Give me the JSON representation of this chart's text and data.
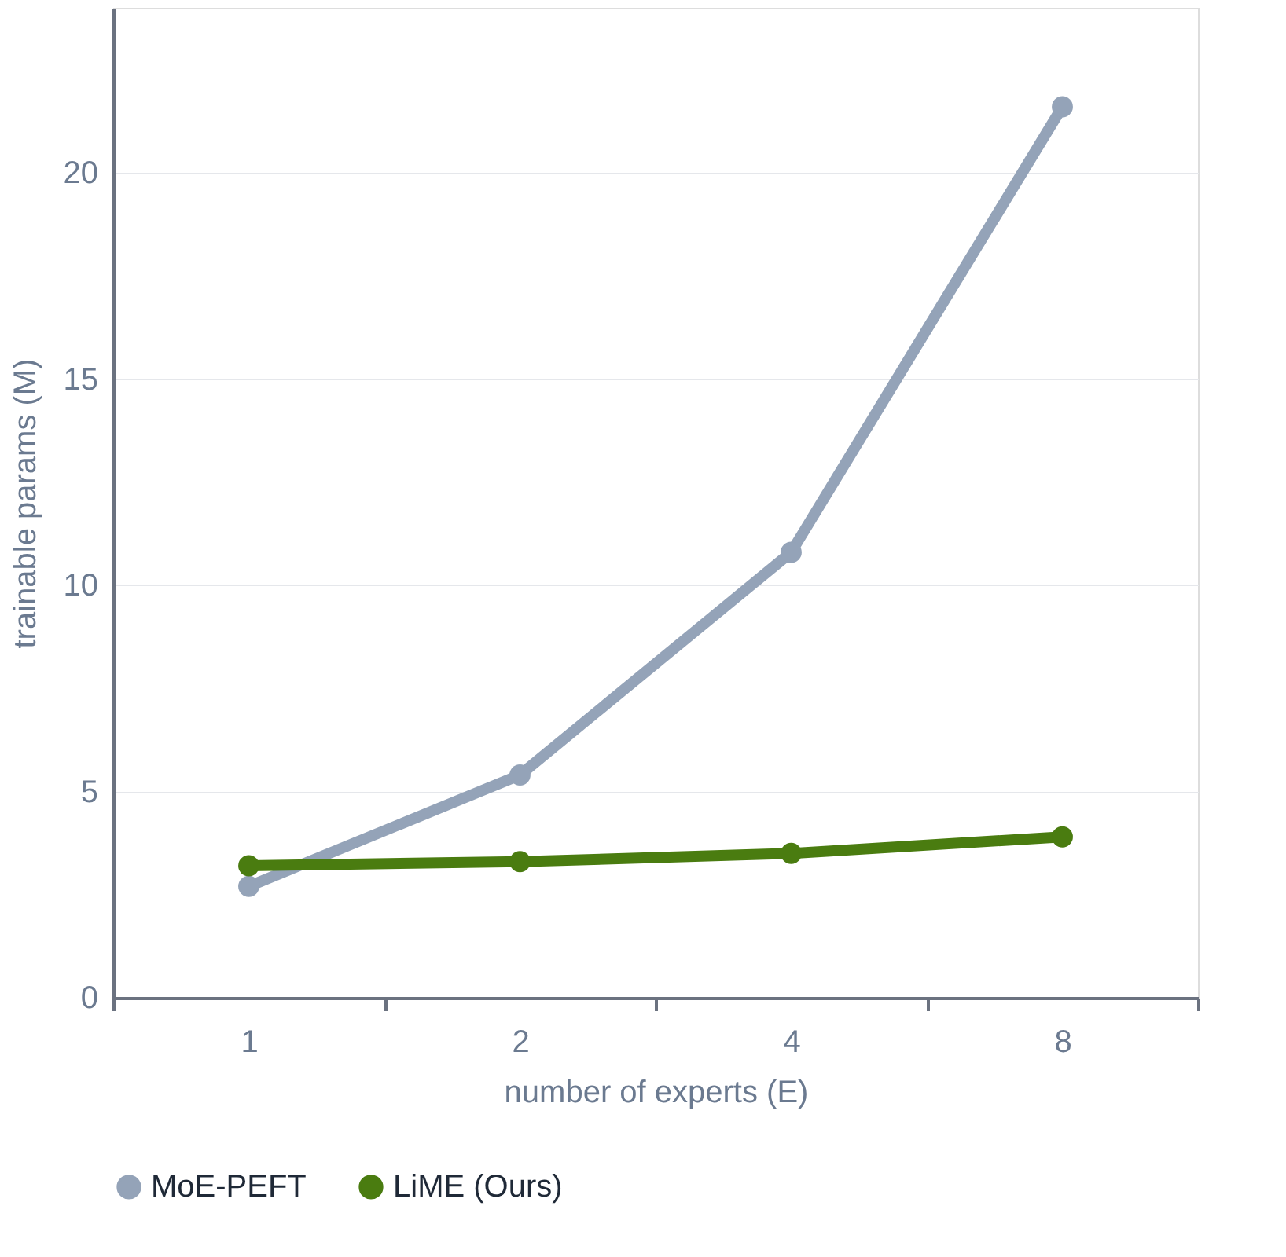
{
  "chart_data": {
    "type": "line",
    "xlabel": "number of experts (E)",
    "ylabel": "trainable params (M)",
    "categories": [
      "1",
      "2",
      "4",
      "8"
    ],
    "series": [
      {
        "name": "MoE-PEFT",
        "color": "#94a3b8",
        "values": [
          2.7,
          5.4,
          10.8,
          21.6
        ]
      },
      {
        "name": "LiME (Ours)",
        "color": "#4a7c10",
        "values": [
          3.2,
          3.3,
          3.5,
          3.9
        ]
      }
    ],
    "ylim": [
      0,
      24
    ],
    "yticks": [
      0,
      5,
      10,
      15,
      20
    ],
    "grid": "y",
    "legend": "bottom",
    "marker": "circle",
    "line_style": "solid"
  }
}
